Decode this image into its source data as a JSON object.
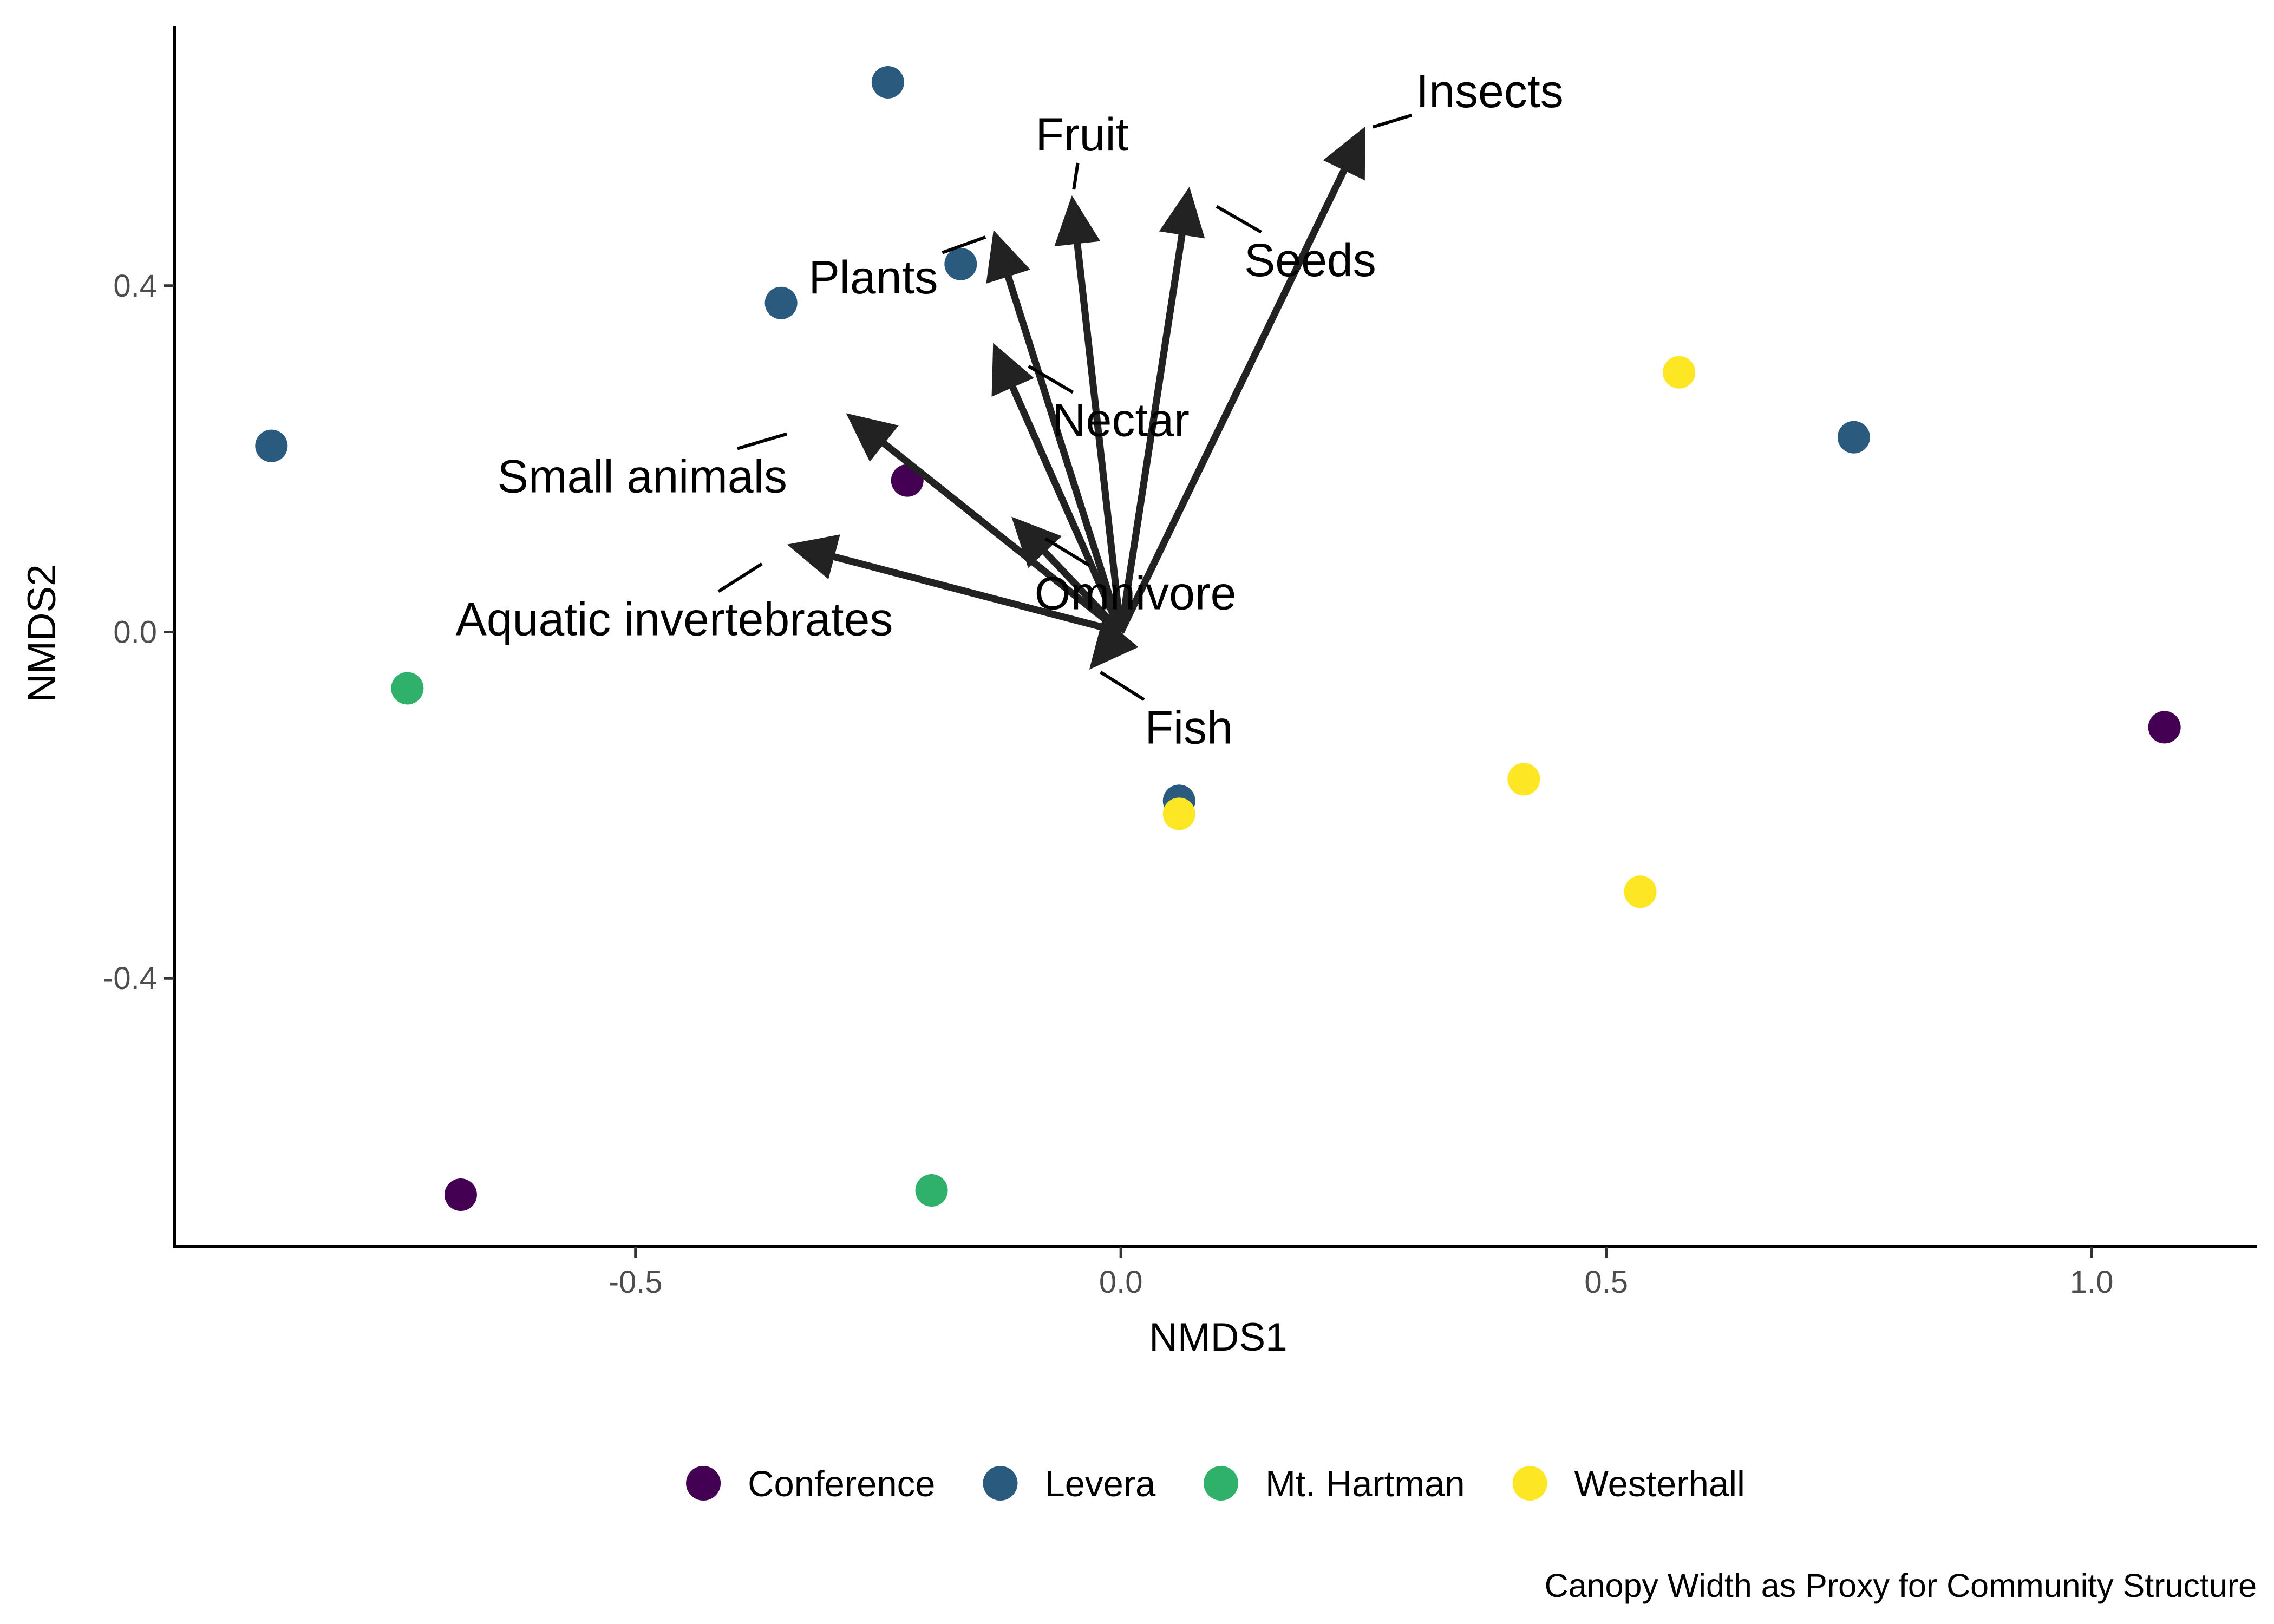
{
  "chart_data": {
    "type": "scatter",
    "title": "",
    "xlabel": "NMDS1",
    "ylabel": "NMDS2",
    "xlim": [
      -0.975,
      1.17
    ],
    "ylim": [
      -0.71,
      0.7
    ],
    "x_ticks": [
      -0.5,
      0.0,
      0.5,
      1.0
    ],
    "x_tick_labels": [
      "-0.5",
      "0.0",
      "0.5",
      "1.0"
    ],
    "y_ticks": [
      -0.4,
      0.0,
      0.4
    ],
    "y_tick_labels": [
      "-0.4",
      "0.0",
      "0.4"
    ],
    "grid": false,
    "legend_position": "bottom",
    "caption": "Canopy Width as Proxy for Community Structure",
    "series": [
      {
        "name": "Conference",
        "color": "#440154",
        "points": [
          {
            "x": -0.22,
            "y": 0.175
          },
          {
            "x": 1.075,
            "y": -0.11
          },
          {
            "x": -0.68,
            "y": -0.65
          }
        ]
      },
      {
        "name": "Levera",
        "color": "#2b5a7f",
        "points": [
          {
            "x": -0.24,
            "y": 0.635
          },
          {
            "x": -0.165,
            "y": 0.425
          },
          {
            "x": -0.35,
            "y": 0.38
          },
          {
            "x": -0.875,
            "y": 0.215
          },
          {
            "x": 0.755,
            "y": 0.225
          },
          {
            "x": 0.06,
            "y": -0.195
          }
        ]
      },
      {
        "name": "Mt. Hartman",
        "color": "#2fb16b",
        "points": [
          {
            "x": -0.735,
            "y": -0.065
          },
          {
            "x": -0.195,
            "y": -0.645
          }
        ]
      },
      {
        "name": "Westerhall",
        "color": "#fde725",
        "points": [
          {
            "x": 0.575,
            "y": 0.3
          },
          {
            "x": 0.415,
            "y": -0.17
          },
          {
            "x": 0.535,
            "y": -0.3
          },
          {
            "x": 0.06,
            "y": -0.21
          }
        ]
      }
    ],
    "vectors": [
      {
        "name": "Insects",
        "x": 0.25,
        "y": 0.58,
        "label_x": 0.38,
        "label_y": 0.625
      },
      {
        "name": "Fruit",
        "x": -0.05,
        "y": 0.5,
        "label_x": -0.04,
        "label_y": 0.575
      },
      {
        "name": "Seeds",
        "x": 0.07,
        "y": 0.51,
        "label_x": 0.195,
        "label_y": 0.43
      },
      {
        "name": "Plants",
        "x": -0.13,
        "y": 0.46,
        "label_x": -0.255,
        "label_y": 0.41
      },
      {
        "name": "Nectar",
        "x": -0.13,
        "y": 0.33,
        "label_x": -0.0,
        "label_y": 0.245
      },
      {
        "name": "Small animals",
        "x": -0.28,
        "y": 0.25,
        "label_x": -0.493,
        "label_y": 0.18
      },
      {
        "name": "Omnivore",
        "x": -0.11,
        "y": 0.13,
        "label_x": 0.015,
        "label_y": 0.045
      },
      {
        "name": "Aquatic invertebrates",
        "x": -0.34,
        "y": 0.1,
        "label_x": -0.46,
        "label_y": 0.015
      },
      {
        "name": "Fish",
        "x": -0.03,
        "y": -0.04,
        "label_x": 0.07,
        "label_y": -0.11
      }
    ]
  }
}
